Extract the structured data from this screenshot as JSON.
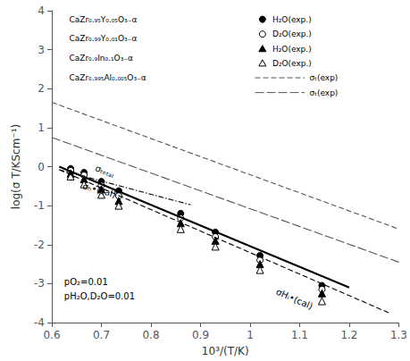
{
  "chart_data": {
    "type": "scatter",
    "xlabel": "10³/(T/K)",
    "ylabel": "log(σ T/KScm⁻¹)",
    "xlim": [
      0.6,
      1.3
    ],
    "ylim": [
      -4.0,
      4.0
    ],
    "xticks": [
      0.6,
      0.7,
      0.8,
      0.9,
      1.0,
      1.1,
      1.2,
      1.3
    ],
    "yticks": [
      -4.0,
      -3.0,
      -2.0,
      -1.0,
      0.0,
      1.0,
      2.0,
      3.0,
      4.0
    ],
    "grid": false,
    "annotations": [
      "pO₂=0.01",
      "pH₂O,D₂O=0.01",
      "CaZr₀.₉₅Y₀.₀₅O₃₋α",
      "CaZr₀.₉₉Y₀.₀₁O₃₋α",
      "CaZr₀.₉In₀.₁O₃₋α",
      "CaZr₀.₉₉₅Al₀.₀₀₅O₃₋α"
    ],
    "series": [
      {
        "name": "σₜ(exp)",
        "type": "line",
        "color": "#555555",
        "line_style": "dashed",
        "x": [
          0.6,
          1.3
        ],
        "values": [
          1.65,
          -1.6
        ]
      },
      {
        "name": "σₜ(exp)",
        "type": "line",
        "color": "#555555",
        "line_style": "longdashed",
        "x": [
          0.6,
          1.3
        ],
        "values": [
          0.75,
          -2.45
        ]
      },
      {
        "name": "σHᵢ•(cal)",
        "type": "line",
        "color": "#000000",
        "line_style": "dashed",
        "x": [
          0.615,
          1.28
        ],
        "values": [
          -0.08,
          -3.75
        ]
      },
      {
        "name": "σₕ•(cal)",
        "type": "line",
        "color": "#000000",
        "line_style": "dashdot",
        "x": [
          0.615,
          0.88
        ],
        "values": [
          -0.08,
          -0.98
        ]
      },
      {
        "name": "σₜₒₜₐₗ",
        "type": "line",
        "color": "#000000",
        "line_style": "solid",
        "x": [
          0.615,
          1.2
        ],
        "values": [
          0.0,
          -3.1
        ]
      },
      {
        "name": "H₂O(exp.)",
        "type": "scatter",
        "color": "#000000",
        "marker": "filled_circle",
        "x": [
          0.638,
          0.665,
          0.7,
          0.735,
          0.86,
          0.93,
          1.02,
          1.145
        ],
        "values": [
          -0.05,
          -0.15,
          -0.38,
          -0.62,
          -1.2,
          -1.68,
          -2.28,
          -3.05
        ]
      },
      {
        "name": "D₂O(exp.)",
        "type": "scatter",
        "color": "#000000",
        "marker": "open_circle",
        "x": [
          0.638,
          0.665,
          0.7,
          0.735,
          0.86,
          0.93,
          1.02,
          1.145
        ],
        "values": [
          -0.1,
          -0.22,
          -0.48,
          -0.75,
          -1.32,
          -1.8,
          -2.4,
          -3.15
        ]
      },
      {
        "name": "H₂O(exp.)",
        "type": "scatter",
        "color": "#000000",
        "marker": "filled_triangle",
        "x": [
          0.638,
          0.665,
          0.7,
          0.735,
          0.86,
          0.93,
          1.02,
          1.145
        ],
        "values": [
          -0.18,
          -0.32,
          -0.58,
          -0.88,
          -1.45,
          -1.9,
          -2.5,
          -3.25
        ]
      },
      {
        "name": "D₂O(exp.)",
        "type": "scatter",
        "color": "#000000",
        "marker": "open_triangle",
        "x": [
          0.638,
          0.665,
          0.7,
          0.735,
          0.86,
          0.93,
          1.02,
          1.145
        ],
        "values": [
          -0.25,
          -0.45,
          -0.72,
          -1.0,
          -1.6,
          -2.05,
          -2.65,
          -3.45
        ]
      }
    ]
  }
}
